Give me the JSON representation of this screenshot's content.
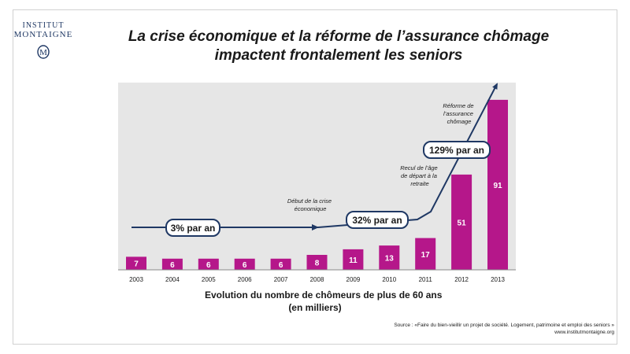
{
  "logo": {
    "line1": "INSTITUT",
    "line2": "MONTAIGNE"
  },
  "title": {
    "line1": "La crise économique et la réforme de l’assurance chômage",
    "line2": "impactent frontalement les seniors"
  },
  "chart_data": {
    "type": "bar",
    "categories": [
      "2003",
      "2004",
      "2005",
      "2006",
      "2007",
      "2008",
      "2009",
      "2010",
      "2011",
      "2012",
      "2013"
    ],
    "values": [
      7,
      6,
      6,
      6,
      6,
      8,
      11,
      13,
      17,
      51,
      91
    ],
    "ylim": [
      0,
      100
    ],
    "grid": false,
    "xlabel": "Evolution du nombre de chômeurs de plus de 60 ans",
    "xlabel2": "(en milliers)",
    "title": "",
    "trend_labels": [
      "3% par an",
      "32% par an",
      "129% par an"
    ],
    "annotations": [
      "Début de la crise économique",
      "Recul de l’âge de départ à la retraite",
      "Réforme de l’assurance chômage"
    ],
    "colors": {
      "bar": "#b5178a",
      "background": "#e6e6e6",
      "arrow": "#1f3864"
    }
  },
  "source": {
    "line1": "Source : «Faire du bien-vieillir un projet de société. Logement, patrimoine et emploi des seniors »",
    "line2": "www.institutmontaigne.org"
  }
}
